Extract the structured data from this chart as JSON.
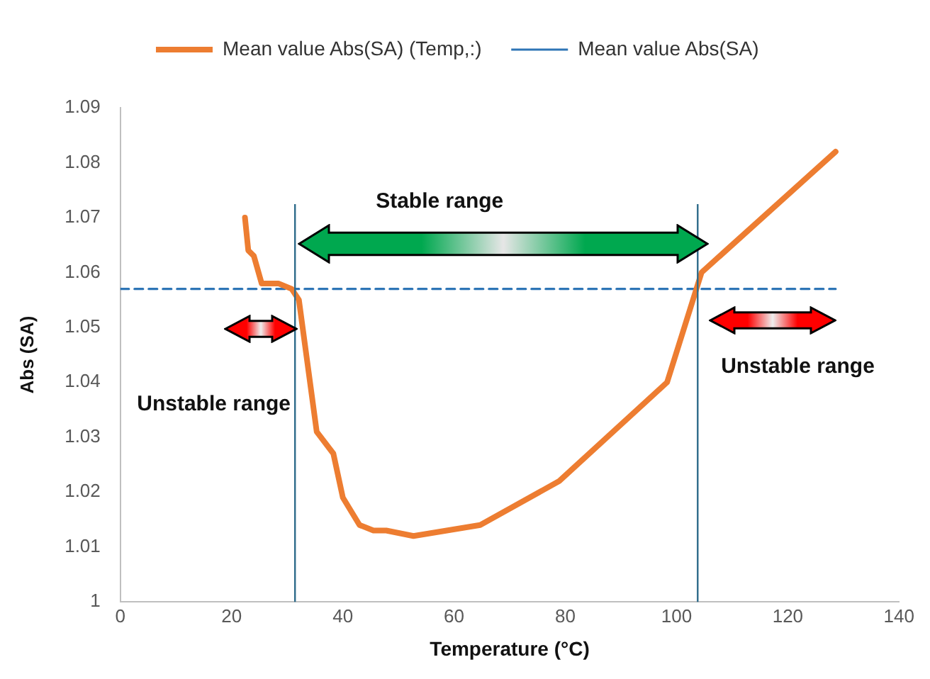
{
  "chart_data": {
    "type": "line",
    "xlabel": "Temperature (°C)",
    "ylabel": "Abs (SA)",
    "xlim": [
      0,
      140
    ],
    "xticks": [
      0,
      20,
      40,
      60,
      80,
      100,
      120,
      140
    ],
    "ylim": [
      1,
      1.09
    ],
    "yticks": [
      1,
      1.01,
      1.02,
      1.03,
      1.04,
      1.05,
      1.06,
      1.07,
      1.08,
      1.09
    ],
    "grid": false,
    "legend": "top",
    "marker": "none",
    "series": [
      {
        "name": "Mean value Abs(SA) (Temp,:)",
        "color": "#ed7d31",
        "line_style": "solid",
        "x": [
          22.4,
          23,
          24,
          25.4,
          28.4,
          30.8,
          32.1,
          35.3,
          38.3,
          40,
          43,
          45.5,
          47.8,
          52.7,
          64.7,
          78.9,
          98.3,
          104.5,
          128.6
        ],
        "values": [
          1.07,
          1.064,
          1.063,
          1.058,
          1.058,
          1.057,
          1.055,
          1.031,
          1.027,
          1.019,
          1.014,
          1.013,
          1.013,
          1.012,
          1.014,
          1.022,
          1.04,
          1.06,
          1.082
        ]
      },
      {
        "name": "Mean value Abs(SA)",
        "color": "#2e75b6",
        "line_style": "dashed",
        "x": [
          0,
          128.6
        ],
        "values": [
          1.057,
          1.057
        ]
      }
    ],
    "ref_lines": [
      {
        "axis": "x",
        "value": 31.4,
        "color": "#2e6b8a"
      },
      {
        "axis": "x",
        "value": 103.8,
        "color": "#2e6b8a"
      }
    ],
    "annotations": [
      "Stable range",
      "Unstable range",
      "Unstable range"
    ]
  }
}
